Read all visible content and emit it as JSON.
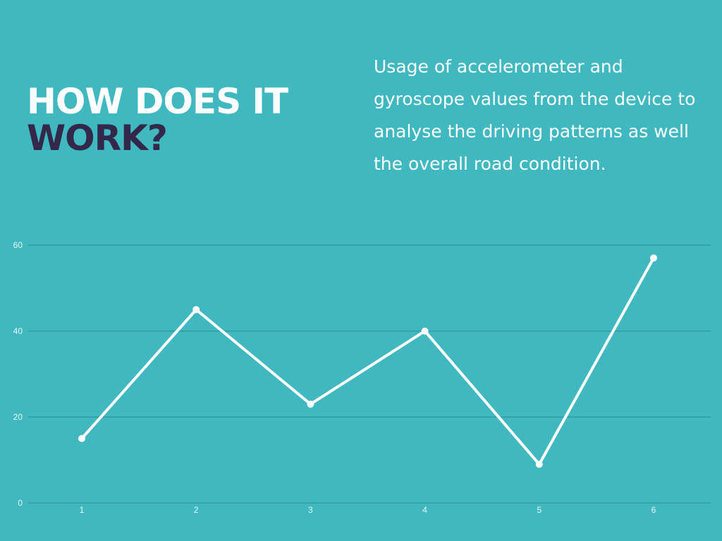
{
  "slide": {
    "title_line1": "HOW DOES IT",
    "title_line2": "WORK?",
    "description": "Usage of accelerometer and gyroscope values from the device to analyse the driving patterns as well the overall road condition."
  },
  "colors": {
    "background": "#3fb8bf",
    "title_accent": "#33274a",
    "line": "#ffffff",
    "grid": "#2a8f95"
  },
  "chart_data": {
    "type": "line",
    "x": [
      1,
      2,
      3,
      4,
      5,
      6
    ],
    "series": [
      {
        "values": [
          15,
          45,
          23,
          40,
          9,
          57
        ]
      }
    ],
    "xticks": [
      "1",
      "2",
      "3",
      "4",
      "5",
      "6"
    ],
    "yticks": [
      "0",
      "20",
      "40",
      "60"
    ],
    "ylim": [
      0,
      60
    ],
    "grid": true,
    "legend": false
  }
}
